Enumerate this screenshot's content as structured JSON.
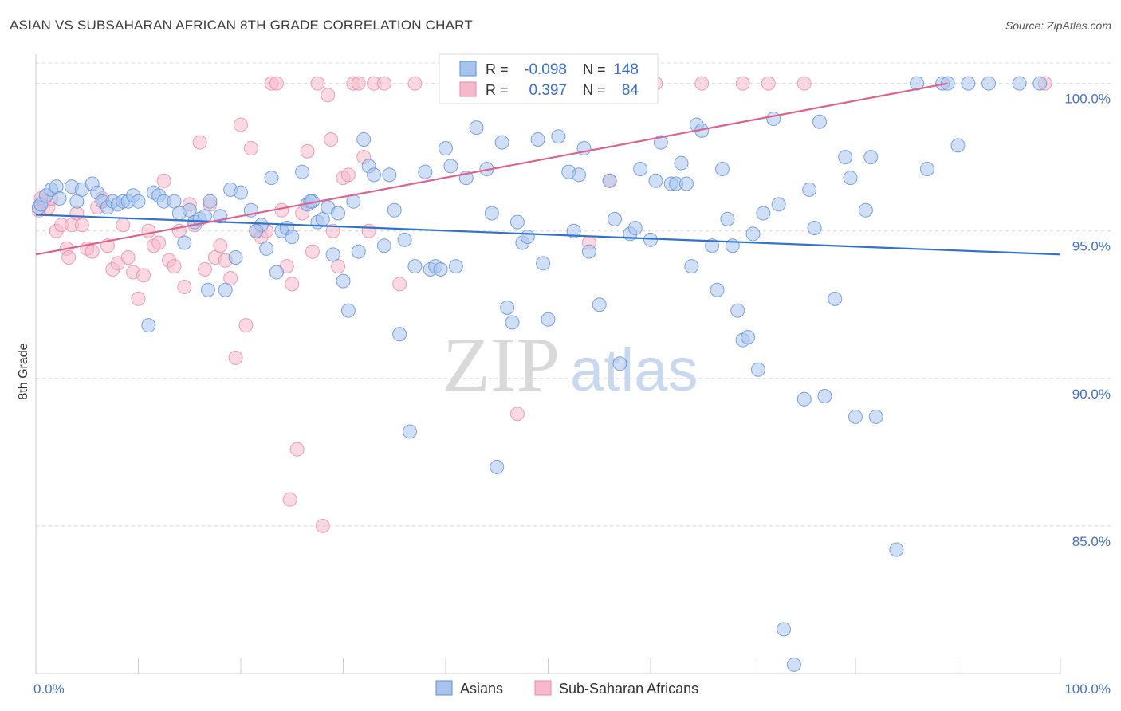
{
  "title": "ASIAN VS SUBSAHARAN AFRICAN 8TH GRADE CORRELATION CHART",
  "source": "Source: ZipAtlas.com",
  "watermark": {
    "zip": "ZIP",
    "atlas": "atlas"
  },
  "colors": {
    "asians_fill": "#a9c4ec",
    "asians_stroke": "#5b8fd8",
    "asians_line": "#2e73d0",
    "african_fill": "#f6b9cb",
    "african_stroke": "#e889a8",
    "african_line": "#e0608e",
    "tick_text": "#4472c4",
    "grid": "#d8d8d8"
  },
  "legend_box": {
    "rows": [
      {
        "r_label": "R =",
        "r_value": "-0.098",
        "n_label": "N =",
        "n_value": "148"
      },
      {
        "r_label": "R =",
        "r_value": "0.397",
        "n_label": "N =",
        "n_value": "84"
      }
    ]
  },
  "bottom_legend": [
    "Asians",
    "Sub-Saharan Africans"
  ],
  "chart_data": {
    "type": "scatter",
    "title": "ASIAN VS SUBSAHARAN AFRICAN 8TH GRADE CORRELATION CHART",
    "xlabel": "",
    "ylabel": "8th Grade",
    "xlim": [
      0,
      100
    ],
    "ylim": [
      80.0,
      100.8
    ],
    "x_tick_labels": [
      "0.0%",
      "100.0%"
    ],
    "y_ticks": [
      85,
      90,
      95,
      100
    ],
    "y_tick_labels": [
      "85.0%",
      "90.0%",
      "95.0%",
      "100.0%"
    ],
    "grid": true,
    "legend_placement": "top-center",
    "series": [
      {
        "name": "Asians",
        "r": -0.098,
        "n": 148,
        "trend": {
          "x": [
            0,
            100
          ],
          "y": [
            95.55,
            94.2
          ]
        },
        "points": [
          [
            0.3,
            95.8
          ],
          [
            0.5,
            95.9
          ],
          [
            1.0,
            96.2
          ],
          [
            1.5,
            96.4
          ],
          [
            2.0,
            96.5
          ],
          [
            2.3,
            96.1
          ],
          [
            3.5,
            96.5
          ],
          [
            4.0,
            96.0
          ],
          [
            4.5,
            96.4
          ],
          [
            5.5,
            96.6
          ],
          [
            6.0,
            96.3
          ],
          [
            6.5,
            96.0
          ],
          [
            7.0,
            95.8
          ],
          [
            7.5,
            96.0
          ],
          [
            8.0,
            95.9
          ],
          [
            8.5,
            96.0
          ],
          [
            9.0,
            96.0
          ],
          [
            9.5,
            96.2
          ],
          [
            10.0,
            96.0
          ],
          [
            11.5,
            96.3
          ],
          [
            12.0,
            96.2
          ],
          [
            12.5,
            96.0
          ],
          [
            13.5,
            96.0
          ],
          [
            14.0,
            95.6
          ],
          [
            15.0,
            95.7
          ],
          [
            15.5,
            95.3
          ],
          [
            16.0,
            95.4
          ],
          [
            16.5,
            95.5
          ],
          [
            17.0,
            96.0
          ],
          [
            18.0,
            95.5
          ],
          [
            19.0,
            96.4
          ],
          [
            20.0,
            96.3
          ],
          [
            21.0,
            95.7
          ],
          [
            22.0,
            95.2
          ],
          [
            23.0,
            96.8
          ],
          [
            24.0,
            95.0
          ],
          [
            24.5,
            95.1
          ],
          [
            25.0,
            94.8
          ],
          [
            26.0,
            97.0
          ],
          [
            26.5,
            95.9
          ],
          [
            27.0,
            96.0
          ],
          [
            27.5,
            95.3
          ],
          [
            28.0,
            95.4
          ],
          [
            28.5,
            95.8
          ],
          [
            29.0,
            94.2
          ],
          [
            30.0,
            93.3
          ],
          [
            30.5,
            92.3
          ],
          [
            31.0,
            96.0
          ],
          [
            31.5,
            94.3
          ],
          [
            32.0,
            98.1
          ],
          [
            32.5,
            97.2
          ],
          [
            33.0,
            96.9
          ],
          [
            34.0,
            94.5
          ],
          [
            34.5,
            96.9
          ],
          [
            35.0,
            95.7
          ],
          [
            36.0,
            94.7
          ],
          [
            37.0,
            93.8
          ],
          [
            38.0,
            97.0
          ],
          [
            38.5,
            93.7
          ],
          [
            39.0,
            93.8
          ],
          [
            40.0,
            97.8
          ],
          [
            41.0,
            93.8
          ],
          [
            42.0,
            96.8
          ],
          [
            43.0,
            98.5
          ],
          [
            44.0,
            97.1
          ],
          [
            44.5,
            95.6
          ],
          [
            45.0,
            87.0
          ],
          [
            45.5,
            98.0
          ],
          [
            46.0,
            92.4
          ],
          [
            46.5,
            91.9
          ],
          [
            47.0,
            95.3
          ],
          [
            47.5,
            94.6
          ],
          [
            48.0,
            94.8
          ],
          [
            49.0,
            98.1
          ],
          [
            49.5,
            93.9
          ],
          [
            50.0,
            92.0
          ],
          [
            51.0,
            98.2
          ],
          [
            52.0,
            97.0
          ],
          [
            52.5,
            95.0
          ],
          [
            53.0,
            96.9
          ],
          [
            53.5,
            97.8
          ],
          [
            54.0,
            94.3
          ],
          [
            55.0,
            92.5
          ],
          [
            56.0,
            96.7
          ],
          [
            56.5,
            95.4
          ],
          [
            57.0,
            90.5
          ],
          [
            58.0,
            94.9
          ],
          [
            58.5,
            95.1
          ],
          [
            59.0,
            97.1
          ],
          [
            60.0,
            94.7
          ],
          [
            60.5,
            96.7
          ],
          [
            61.0,
            98.0
          ],
          [
            62.0,
            96.6
          ],
          [
            62.5,
            96.6
          ],
          [
            63.0,
            97.3
          ],
          [
            63.5,
            96.6
          ],
          [
            64.0,
            93.8
          ],
          [
            64.5,
            98.6
          ],
          [
            65.0,
            98.4
          ],
          [
            66.0,
            94.5
          ],
          [
            66.5,
            93.0
          ],
          [
            67.0,
            97.1
          ],
          [
            67.5,
            95.4
          ],
          [
            68.0,
            94.5
          ],
          [
            68.5,
            92.3
          ],
          [
            69.0,
            91.3
          ],
          [
            69.5,
            91.4
          ],
          [
            70.0,
            94.9
          ],
          [
            70.5,
            90.3
          ],
          [
            71.0,
            95.6
          ],
          [
            72.0,
            98.8
          ],
          [
            72.5,
            95.9
          ],
          [
            73.0,
            81.5
          ],
          [
            74.0,
            80.3
          ],
          [
            75.0,
            89.3
          ],
          [
            75.5,
            96.4
          ],
          [
            76.0,
            95.1
          ],
          [
            76.5,
            98.7
          ],
          [
            77.0,
            89.4
          ],
          [
            78.0,
            92.7
          ],
          [
            79.0,
            97.5
          ],
          [
            79.5,
            96.8
          ],
          [
            80.0,
            88.7
          ],
          [
            81.0,
            95.7
          ],
          [
            81.5,
            97.5
          ],
          [
            82.0,
            88.7
          ],
          [
            84.0,
            84.2
          ],
          [
            86.0,
            100.0
          ],
          [
            87.0,
            97.1
          ],
          [
            88.5,
            100.0
          ],
          [
            89.0,
            100.0
          ],
          [
            90.0,
            97.9
          ],
          [
            91.0,
            100.0
          ],
          [
            93.0,
            100.0
          ],
          [
            96.0,
            100.0
          ],
          [
            98.0,
            100.0
          ],
          [
            11.0,
            91.8
          ],
          [
            14.5,
            94.6
          ],
          [
            16.8,
            93.0
          ],
          [
            18.5,
            93.0
          ],
          [
            19.5,
            94.1
          ],
          [
            21.5,
            95.0
          ],
          [
            22.5,
            94.4
          ],
          [
            23.5,
            93.6
          ],
          [
            26.8,
            96.0
          ],
          [
            29.5,
            95.6
          ],
          [
            35.5,
            91.5
          ],
          [
            36.5,
            88.2
          ],
          [
            39.5,
            93.7
          ],
          [
            40.5,
            97.2
          ],
          [
            47.8,
            100.0
          ]
        ]
      },
      {
        "name": "Sub-Saharan Africans",
        "r": 0.397,
        "n": 84,
        "trend": {
          "x": [
            0,
            89
          ],
          "y": [
            94.2,
            100.0
          ]
        },
        "points": [
          [
            0.3,
            95.7
          ],
          [
            0.8,
            96.0
          ],
          [
            1.2,
            95.8
          ],
          [
            1.5,
            96.1
          ],
          [
            2.0,
            95.0
          ],
          [
            2.5,
            95.2
          ],
          [
            3.0,
            94.4
          ],
          [
            3.5,
            95.2
          ],
          [
            4.0,
            95.6
          ],
          [
            4.5,
            95.2
          ],
          [
            5.0,
            94.4
          ],
          [
            5.5,
            94.3
          ],
          [
            6.0,
            95.8
          ],
          [
            6.5,
            96.1
          ],
          [
            7.0,
            94.5
          ],
          [
            7.5,
            93.7
          ],
          [
            8.0,
            93.9
          ],
          [
            8.5,
            95.2
          ],
          [
            9.0,
            94.1
          ],
          [
            9.5,
            93.6
          ],
          [
            10.0,
            92.7
          ],
          [
            10.5,
            93.5
          ],
          [
            11.0,
            95.0
          ],
          [
            11.5,
            94.5
          ],
          [
            12.0,
            94.6
          ],
          [
            12.5,
            96.7
          ],
          [
            13.0,
            94.0
          ],
          [
            13.5,
            93.8
          ],
          [
            14.0,
            95.0
          ],
          [
            14.5,
            93.1
          ],
          [
            15.0,
            95.9
          ],
          [
            15.5,
            95.2
          ],
          [
            16.0,
            98.0
          ],
          [
            16.5,
            93.7
          ],
          [
            17.0,
            95.9
          ],
          [
            17.5,
            94.1
          ],
          [
            18.0,
            94.5
          ],
          [
            18.5,
            94.0
          ],
          [
            19.0,
            93.4
          ],
          [
            19.5,
            90.7
          ],
          [
            20.0,
            98.6
          ],
          [
            20.5,
            91.8
          ],
          [
            21.0,
            97.8
          ],
          [
            21.5,
            95.0
          ],
          [
            22.0,
            94.8
          ],
          [
            22.5,
            95.0
          ],
          [
            23.0,
            100.0
          ],
          [
            23.5,
            100.0
          ],
          [
            24.0,
            95.7
          ],
          [
            24.5,
            93.8
          ],
          [
            25.0,
            93.2
          ],
          [
            25.5,
            87.6
          ],
          [
            26.0,
            95.6
          ],
          [
            26.5,
            97.7
          ],
          [
            27.0,
            94.3
          ],
          [
            27.5,
            100.0
          ],
          [
            28.0,
            85.0
          ],
          [
            28.5,
            99.6
          ],
          [
            29.0,
            95.0
          ],
          [
            29.5,
            93.8
          ],
          [
            30.0,
            96.8
          ],
          [
            30.5,
            96.9
          ],
          [
            31.0,
            100.0
          ],
          [
            31.5,
            100.0
          ],
          [
            32.0,
            97.5
          ],
          [
            32.5,
            95.0
          ],
          [
            33.0,
            100.0
          ],
          [
            34.0,
            100.0
          ],
          [
            35.5,
            93.2
          ],
          [
            37.0,
            100.0
          ],
          [
            47.0,
            88.8
          ],
          [
            54.0,
            94.6
          ],
          [
            55.0,
            100.0
          ],
          [
            56.0,
            96.7
          ],
          [
            60.5,
            100.0
          ],
          [
            65.0,
            100.0
          ],
          [
            69.0,
            100.0
          ],
          [
            71.5,
            100.0
          ],
          [
            75.0,
            100.0
          ],
          [
            98.5,
            100.0
          ],
          [
            0.5,
            96.1
          ],
          [
            3.2,
            94.1
          ],
          [
            24.8,
            85.9
          ],
          [
            28.8,
            98.1
          ]
        ]
      }
    ]
  }
}
